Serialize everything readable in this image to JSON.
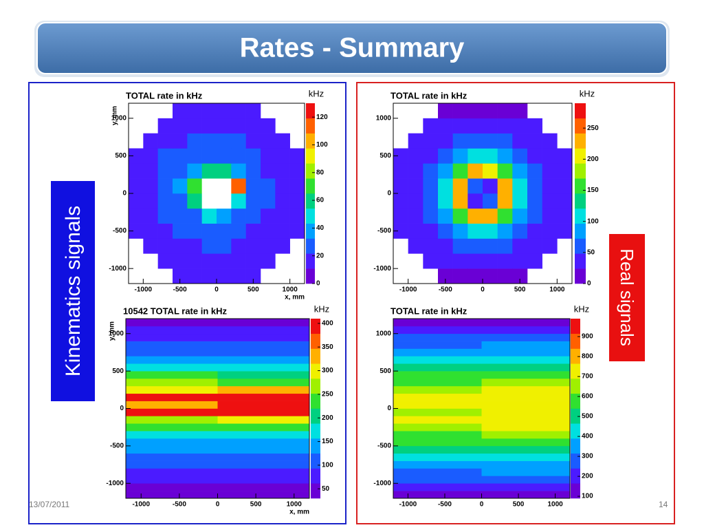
{
  "title": "Rates - Summary",
  "left_label": "Kinematics signals",
  "right_label": "Real signals",
  "date": "13/07/2011",
  "page": "14",
  "palette": [
    "#6a00d5",
    "#4b1bff",
    "#1a5cff",
    "#00a0ff",
    "#00e0e0",
    "#00d080",
    "#30e030",
    "#a0f000",
    "#f0f000",
    "#ffb000",
    "#ff6000",
    "#ee1010"
  ],
  "chart_data": [
    {
      "type": "heatmap",
      "title": "TOTAL rate in kHz",
      "z_label": "kHz",
      "x_label": "x, mm",
      "y_label": "y, mm",
      "xlim": [
        -1200,
        1200
      ],
      "ylim": [
        -1200,
        1200
      ],
      "xticks": [
        -1000,
        -500,
        0,
        500,
        1000
      ],
      "yticks": [
        -1000,
        -500,
        0,
        500,
        1000
      ],
      "zlim": [
        0,
        130
      ],
      "zticks": [
        0,
        20,
        40,
        60,
        80,
        100,
        120
      ],
      "xbins": [
        -1200,
        -1000,
        -800,
        -600,
        -400,
        -200,
        0,
        200,
        400,
        600,
        800,
        1000,
        1200
      ],
      "ybins": [
        -1200,
        -1000,
        -800,
        -600,
        -400,
        -200,
        0,
        200,
        400,
        600,
        800,
        1000,
        1200
      ],
      "z": [
        [
          null,
          null,
          null,
          15,
          15,
          14,
          16,
          15,
          15,
          null,
          null,
          null
        ],
        [
          null,
          null,
          16,
          17,
          18,
          20,
          19,
          17,
          16,
          16,
          null,
          null
        ],
        [
          null,
          17,
          18,
          19,
          21,
          25,
          23,
          20,
          18,
          17,
          16,
          null
        ],
        [
          15,
          18,
          20,
          22,
          25,
          30,
          28,
          24,
          21,
          19,
          17,
          15
        ],
        [
          16,
          19,
          22,
          26,
          32,
          45,
          40,
          30,
          24,
          21,
          18,
          16
        ],
        [
          17,
          21,
          25,
          32,
          55,
          150,
          150,
          50,
          28,
          23,
          19,
          17
        ],
        [
          17,
          21,
          26,
          34,
          70,
          150,
          150,
          110,
          30,
          23,
          19,
          17
        ],
        [
          16,
          20,
          24,
          29,
          40,
          60,
          55,
          38,
          26,
          21,
          18,
          16
        ],
        [
          15,
          19,
          22,
          25,
          28,
          32,
          30,
          26,
          22,
          20,
          17,
          15
        ],
        [
          null,
          17,
          20,
          21,
          23,
          24,
          23,
          22,
          20,
          18,
          16,
          null
        ],
        [
          null,
          null,
          17,
          18,
          19,
          20,
          19,
          18,
          17,
          16,
          null,
          null
        ],
        [
          null,
          null,
          null,
          15,
          16,
          16,
          16,
          15,
          15,
          null,
          null,
          null
        ]
      ]
    },
    {
      "type": "heatmap",
      "title": "TOTAL rate in kHz",
      "z_label": "kHz",
      "xlim": [
        -1200,
        1200
      ],
      "ylim": [
        -1200,
        1200
      ],
      "xticks": [
        -1000,
        -500,
        0,
        500,
        1000
      ],
      "yticks": [
        -1000,
        -500,
        0,
        500,
        1000
      ],
      "zlim": [
        0,
        290
      ],
      "zticks": [
        0,
        50,
        100,
        150,
        200,
        250
      ],
      "xbins": [
        -1200,
        -1000,
        -800,
        -600,
        -400,
        -200,
        0,
        200,
        400,
        600,
        800,
        1000,
        1200
      ],
      "ybins": [
        -1200,
        -1000,
        -800,
        -600,
        -400,
        -200,
        0,
        200,
        400,
        600,
        800,
        1000,
        1200
      ],
      "z": [
        [
          null,
          null,
          null,
          20,
          22,
          23,
          23,
          22,
          20,
          null,
          null,
          null
        ],
        [
          null,
          null,
          25,
          28,
          32,
          35,
          35,
          32,
          28,
          25,
          null,
          null
        ],
        [
          null,
          28,
          34,
          42,
          52,
          60,
          60,
          52,
          42,
          34,
          28,
          null
        ],
        [
          25,
          32,
          42,
          60,
          85,
          110,
          110,
          85,
          60,
          42,
          32,
          25
        ],
        [
          28,
          36,
          52,
          85,
          150,
          220,
          220,
          150,
          85,
          52,
          36,
          28
        ],
        [
          30,
          40,
          60,
          110,
          220,
          40,
          60,
          230,
          110,
          60,
          40,
          30
        ],
        [
          30,
          40,
          60,
          110,
          230,
          70,
          30,
          220,
          110,
          60,
          40,
          30
        ],
        [
          28,
          36,
          52,
          85,
          150,
          230,
          210,
          150,
          85,
          52,
          36,
          28
        ],
        [
          25,
          32,
          42,
          60,
          85,
          110,
          110,
          85,
          60,
          42,
          32,
          25
        ],
        [
          null,
          28,
          34,
          42,
          52,
          60,
          60,
          52,
          42,
          34,
          28,
          null
        ],
        [
          null,
          null,
          25,
          28,
          32,
          35,
          35,
          32,
          28,
          25,
          null,
          null
        ],
        [
          null,
          null,
          null,
          20,
          22,
          23,
          23,
          22,
          20,
          null,
          null,
          null
        ]
      ]
    },
    {
      "type": "heatmap",
      "title": "10542 TOTAL rate in kHz",
      "z_label": "kHz",
      "x_label": "x, mm",
      "y_label": "y, mm",
      "xlim": [
        -1200,
        1200
      ],
      "ylim": [
        -1200,
        1200
      ],
      "xticks": [
        -1000,
        -500,
        0,
        500,
        1000
      ],
      "yticks": [
        -1000,
        -500,
        0,
        500,
        1000
      ],
      "zlim": [
        30,
        410
      ],
      "zticks": [
        50,
        100,
        150,
        200,
        250,
        300,
        350,
        400
      ],
      "xbins": [
        -1200,
        0,
        1200
      ],
      "ybins": [
        -1200,
        -1100,
        -1000,
        -900,
        -800,
        -700,
        -600,
        -500,
        -400,
        -300,
        -200,
        -100,
        0,
        100,
        200,
        300,
        400,
        500,
        600,
        700,
        800,
        900,
        1000,
        1100,
        1200
      ],
      "z": [
        [
          40,
          45
        ],
        [
          55,
          55
        ],
        [
          70,
          65
        ],
        [
          80,
          80
        ],
        [
          95,
          100
        ],
        [
          110,
          110
        ],
        [
          130,
          125
        ],
        [
          150,
          150
        ],
        [
          180,
          175
        ],
        [
          230,
          220
        ],
        [
          280,
          290
        ],
        [
          390,
          390
        ],
        [
          330,
          380
        ],
        [
          400,
          400
        ],
        [
          300,
          340
        ],
        [
          260,
          250
        ],
        [
          220,
          210
        ],
        [
          180,
          170
        ],
        [
          140,
          140
        ],
        [
          115,
          110
        ],
        [
          95,
          95
        ],
        [
          80,
          80
        ],
        [
          65,
          65
        ],
        [
          50,
          50
        ]
      ]
    },
    {
      "type": "heatmap",
      "title": "TOTAL rate in kHz",
      "z_label": "kHz",
      "xlim": [
        -1200,
        1200
      ],
      "ylim": [
        -1200,
        1200
      ],
      "xticks": [
        -1000,
        -500,
        0,
        500,
        1000
      ],
      "yticks": [
        -1000,
        -500,
        0,
        500,
        1000
      ],
      "zlim": [
        90,
        990
      ],
      "zticks": [
        100,
        200,
        300,
        400,
        500,
        600,
        700,
        800,
        900
      ],
      "xbins": [
        -1200,
        0,
        1200
      ],
      "ybins": [
        -1200,
        -1100,
        -1000,
        -900,
        -800,
        -700,
        -600,
        -500,
        -400,
        -300,
        -200,
        -100,
        0,
        100,
        200,
        300,
        400,
        500,
        600,
        700,
        800,
        900,
        1000,
        1100,
        1200
      ],
      "z": [
        [
          150,
          150
        ],
        [
          200,
          200
        ],
        [
          260,
          260
        ],
        [
          300,
          320
        ],
        [
          360,
          380
        ],
        [
          420,
          440
        ],
        [
          480,
          500
        ],
        [
          540,
          560
        ],
        [
          600,
          640
        ],
        [
          650,
          700
        ],
        [
          700,
          750
        ],
        [
          680,
          760
        ],
        [
          690,
          760
        ],
        [
          700,
          750
        ],
        [
          650,
          700
        ],
        [
          600,
          640
        ],
        [
          540,
          560
        ],
        [
          480,
          500
        ],
        [
          420,
          440
        ],
        [
          360,
          380
        ],
        [
          300,
          320
        ],
        [
          260,
          260
        ],
        [
          200,
          200
        ],
        [
          150,
          150
        ]
      ]
    }
  ]
}
